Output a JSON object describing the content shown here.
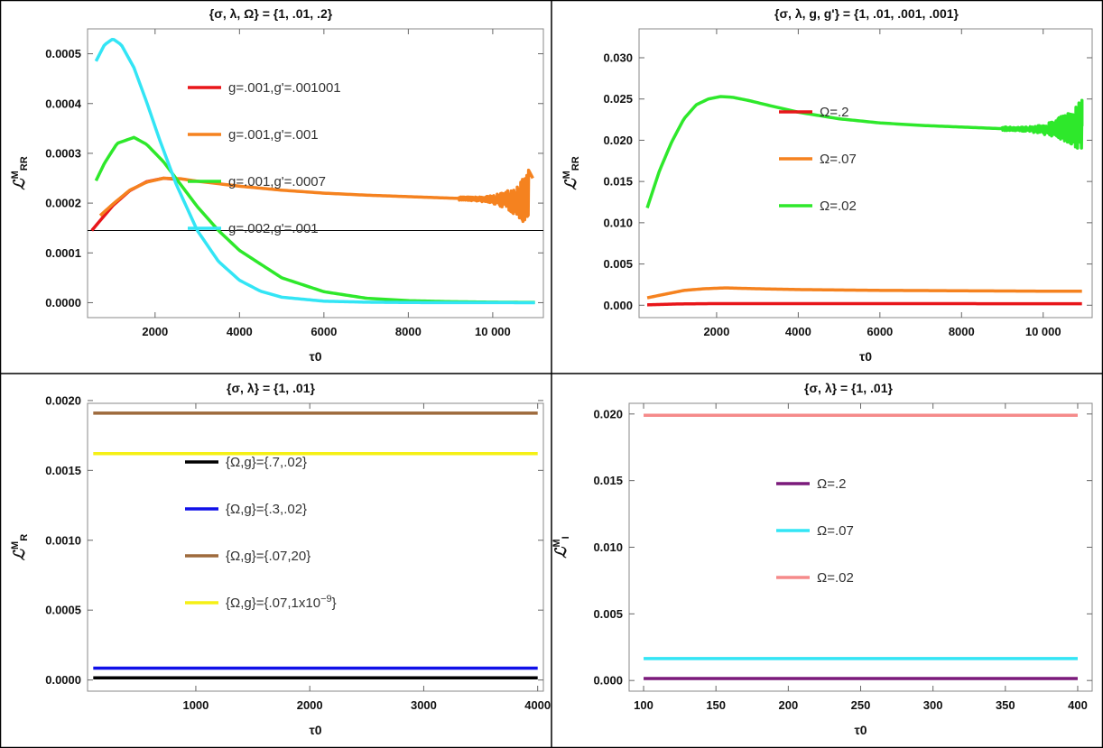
{
  "chart_data": [
    {
      "type": "line",
      "title": "{σ, λ, Ω} = {1, .01, .2}",
      "xlabel": "τ0",
      "ylabel": "L^M_RR",
      "xlim": [
        400,
        11200
      ],
      "ylim": [
        -3e-05,
        0.00055
      ],
      "xticks": [
        2000,
        4000,
        6000,
        8000,
        10000
      ],
      "xtick_labels": [
        "2000",
        "4000",
        "6000",
        "8000",
        "10 000"
      ],
      "yticks": [
        0.0,
        0.0001,
        0.0002,
        0.0003,
        0.0004,
        0.0005
      ],
      "ytick_labels": [
        "0.0000",
        "0.0001",
        "0.0002",
        "0.0003",
        "0.0004",
        "0.0005"
      ],
      "hline": 0.000145,
      "noise_tail": {
        "series": 1,
        "start": 9200,
        "end": 10850
      },
      "series": [
        {
          "name": "g=.001,g'=.001001",
          "color": "#e8161a",
          "x": [
            500,
            700,
            1000,
            1400,
            1800,
            2200,
            2500
          ],
          "values": [
            0.000145,
            0.000165,
            0.000195,
            0.000225,
            0.000243,
            0.00025,
            0.000248
          ]
        },
        {
          "name": "g=.001,g'=.001",
          "color": "#f5821f",
          "x": [
            700,
            1000,
            1400,
            1800,
            2200,
            2600,
            3000,
            4000,
            5000,
            6000,
            7000,
            8000,
            9000,
            10000,
            10800,
            10950
          ],
          "values": [
            0.000175,
            0.000198,
            0.000226,
            0.000242,
            0.00025,
            0.000249,
            0.000244,
            0.000234,
            0.000226,
            0.00022,
            0.000216,
            0.000213,
            0.00021,
            0.000207,
            0.000205,
            0.00025
          ]
        },
        {
          "name": "g=.001,g'=.0007",
          "color": "#2ee82b",
          "x": [
            600,
            800,
            1100,
            1500,
            1800,
            2200,
            2600,
            3000,
            3500,
            4000,
            5000,
            6000,
            7000,
            8000,
            9000,
            10000,
            11000
          ],
          "values": [
            0.000245,
            0.00028,
            0.00032,
            0.000332,
            0.000318,
            0.000283,
            0.000238,
            0.000193,
            0.000145,
            0.000105,
            5e-05,
            2.2e-05,
            9e-06,
            4e-06,
            2e-06,
            1e-06,
            5e-07
          ]
        },
        {
          "name": "g=.002,g'=.001",
          "color": "#33e5f5",
          "x": [
            600,
            800,
            1000,
            1200,
            1500,
            1800,
            2100,
            2500,
            3000,
            3500,
            4000,
            4500,
            5000,
            6000,
            7000,
            8000,
            9000,
            11000
          ],
          "values": [
            0.000485,
            0.000518,
            0.00053,
            0.000518,
            0.000472,
            0.000403,
            0.000329,
            0.000238,
            0.000145,
            8.3e-05,
            4.5e-05,
            2.3e-05,
            1.1e-05,
            3e-06,
            1e-06,
            3e-07,
            1e-07,
            0.0
          ]
        }
      ],
      "legend_position": "center"
    },
    {
      "type": "line",
      "title": "{σ, λ, g, g'} = {1, .01, .001, .001}",
      "xlabel": "τ0",
      "ylabel": "L^M_RR",
      "xlim": [
        100,
        11200
      ],
      "ylim": [
        -0.0015,
        0.0335
      ],
      "xticks": [
        2000,
        4000,
        6000,
        8000,
        10000
      ],
      "xtick_labels": [
        "2000",
        "4000",
        "6000",
        "8000",
        "10 000"
      ],
      "yticks": [
        0.0,
        0.005,
        0.01,
        0.015,
        0.02,
        0.025,
        0.03
      ],
      "ytick_labels": [
        "0.000",
        "0.005",
        "0.010",
        "0.015",
        "0.020",
        "0.025",
        "0.030"
      ],
      "noise_tail": {
        "series": 2,
        "start": 9000,
        "end": 10950
      },
      "series": [
        {
          "name": "Ω=.2",
          "color": "#e8161a",
          "x": [
            300,
            1000,
            2000,
            4000,
            6000,
            8000,
            10000,
            10950
          ],
          "values": [
            5e-05,
            0.00015,
            0.0002,
            0.0002,
            0.00019,
            0.00019,
            0.00018,
            0.00018
          ]
        },
        {
          "name": "Ω=.07",
          "color": "#f5821f",
          "x": [
            300,
            700,
            1200,
            1700,
            2200,
            3000,
            4000,
            5000,
            6000,
            7000,
            8000,
            9000,
            10000,
            10950
          ],
          "values": [
            0.0009,
            0.0013,
            0.0018,
            0.002,
            0.0021,
            0.002,
            0.0019,
            0.00185,
            0.0018,
            0.00178,
            0.00175,
            0.00173,
            0.0017,
            0.0017
          ]
        },
        {
          "name": "Ω=.02",
          "color": "#2ee82b",
          "x": [
            300,
            600,
            900,
            1200,
            1500,
            1800,
            2100,
            2400,
            2800,
            3300,
            4000,
            5000,
            6000,
            7000,
            8000,
            9000,
            10000,
            10950
          ],
          "values": [
            0.0118,
            0.0163,
            0.0198,
            0.0226,
            0.0243,
            0.025,
            0.0253,
            0.0252,
            0.0248,
            0.0242,
            0.0234,
            0.0226,
            0.0221,
            0.0218,
            0.0216,
            0.0214,
            0.0213,
            0.0217
          ]
        }
      ],
      "legend_position": "center"
    },
    {
      "type": "line",
      "title": "{σ, λ} = {1, .01}",
      "xlabel": "τ0",
      "ylabel": "L^M_R",
      "xlim": [
        50,
        4050
      ],
      "ylim": [
        -8e-05,
        0.00198
      ],
      "xticks": [
        1000,
        2000,
        3000,
        4000
      ],
      "xtick_labels": [
        "1000",
        "2000",
        "3000",
        "4000"
      ],
      "yticks": [
        0.0,
        0.0005,
        0.001,
        0.0015,
        0.002
      ],
      "ytick_labels": [
        "0.0000",
        "0.0005",
        "0.0010",
        "0.0015",
        "0.0020"
      ],
      "series": [
        {
          "name": "{Ω,g}={.7,.02}",
          "color": "#000000",
          "x": [
            100,
            4000
          ],
          "values": [
            1.5e-05,
            1.5e-05
          ]
        },
        {
          "name": "{Ω,g}={.3,.02}",
          "color": "#1010e8",
          "x": [
            100,
            4000
          ],
          "values": [
            8.5e-05,
            8.5e-05
          ]
        },
        {
          "name": "{Ω,g}={.07,20}",
          "color": "#9e6a3c",
          "x": [
            100,
            4000
          ],
          "values": [
            0.00191,
            0.00191
          ]
        },
        {
          "name": "{Ω,g}={.07,1x10",
          "superscript": "−9",
          "name_suffix": "}",
          "color": "#f5f015",
          "x": [
            100,
            4000
          ],
          "values": [
            0.00162,
            0.00162
          ]
        }
      ],
      "legend_position": "center"
    },
    {
      "type": "line",
      "title": "{σ, λ} = {1, .01}",
      "xlabel": "τ0",
      "ylabel": "L^M_I",
      "xlim": [
        90,
        410
      ],
      "ylim": [
        -0.0008,
        0.0208
      ],
      "xticks": [
        100,
        150,
        200,
        250,
        300,
        350,
        400
      ],
      "xtick_labels": [
        "100",
        "150",
        "200",
        "250",
        "300",
        "350",
        "400"
      ],
      "yticks": [
        0.0,
        0.005,
        0.01,
        0.015,
        0.02
      ],
      "ytick_labels": [
        "0.000",
        "0.005",
        "0.010",
        "0.015",
        "0.020"
      ],
      "series": [
        {
          "name": "Ω=.2",
          "color": "#7b1a7b",
          "x": [
            100,
            400
          ],
          "values": [
            0.00015,
            0.00015
          ]
        },
        {
          "name": "Ω=.07",
          "color": "#33e5f5",
          "x": [
            100,
            400
          ],
          "values": [
            0.00165,
            0.00165
          ]
        },
        {
          "name": "Ω=.02",
          "color": "#f58a8a",
          "x": [
            100,
            400
          ],
          "values": [
            0.0199,
            0.0199
          ]
        }
      ],
      "legend_position": "center"
    }
  ]
}
